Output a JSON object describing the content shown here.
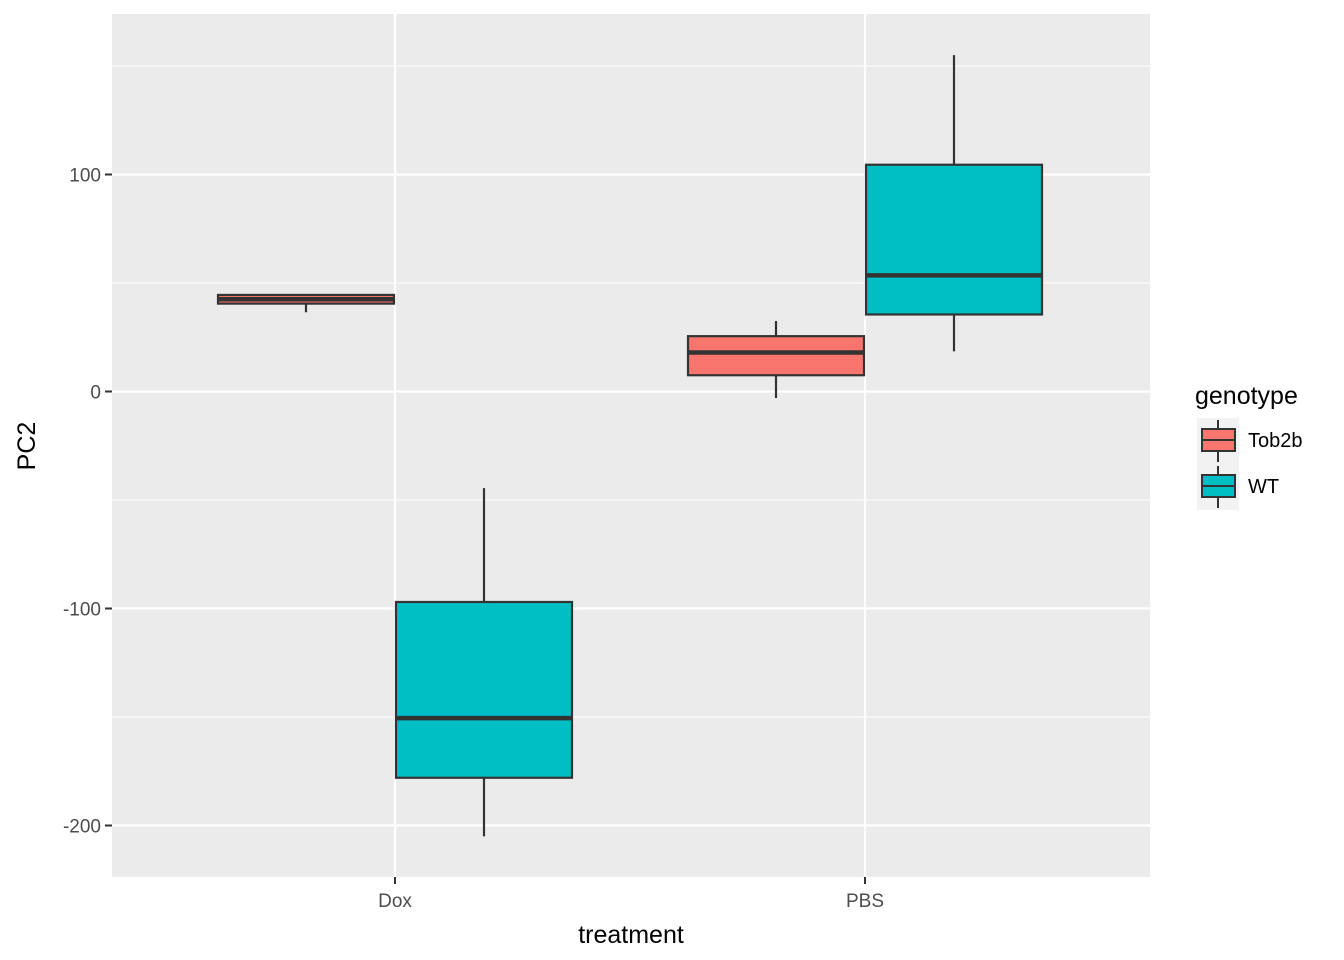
{
  "chart_data": {
    "type": "boxplot",
    "title": "",
    "xlabel": "treatment",
    "ylabel": "PC2",
    "categories": [
      "Dox",
      "PBS"
    ],
    "ylim": [
      -222,
      173
    ],
    "yticks": [
      -200,
      -100,
      0,
      100
    ],
    "grid": true,
    "legend": {
      "title": "genotype",
      "position": "right"
    },
    "series": [
      {
        "name": "Tob2b",
        "color": "#F8766D",
        "boxes": [
          {
            "category": "Dox",
            "min": 36.5,
            "q1": 40.5,
            "median": 42.5,
            "q3": 44.5,
            "max": 44.5
          },
          {
            "category": "PBS",
            "min": -3,
            "q1": 7.5,
            "median": 18,
            "q3": 25.5,
            "max": 32.5
          }
        ]
      },
      {
        "name": "WT",
        "color": "#00BFC4",
        "boxes": [
          {
            "category": "Dox",
            "min": -205,
            "q1": -178,
            "median": -150.5,
            "q3": -97,
            "max": -44.5
          },
          {
            "category": "PBS",
            "min": 18.5,
            "q1": 35.5,
            "median": 53.5,
            "q3": 104.5,
            "max": 155
          }
        ]
      }
    ]
  }
}
